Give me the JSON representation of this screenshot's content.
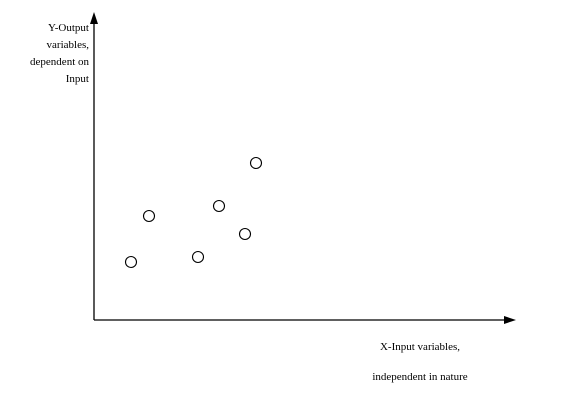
{
  "chart_data": {
    "type": "scatter",
    "title": "",
    "ylabel_lines": [
      "Y-Output",
      "variables,",
      "dependent on",
      "Input"
    ],
    "xlabel_lines": [
      "X-Input variables,",
      "independent in nature"
    ],
    "xlim": [
      0,
      420
    ],
    "ylim": [
      0,
      305
    ],
    "grid": false,
    "legend": "none",
    "series": [
      {
        "points": [
          {
            "x": 37,
            "y": 58
          },
          {
            "x": 55,
            "y": 104
          },
          {
            "x": 104,
            "y": 63
          },
          {
            "x": 125,
            "y": 114
          },
          {
            "x": 151,
            "y": 86
          },
          {
            "x": 162,
            "y": 157
          }
        ]
      }
    ]
  }
}
